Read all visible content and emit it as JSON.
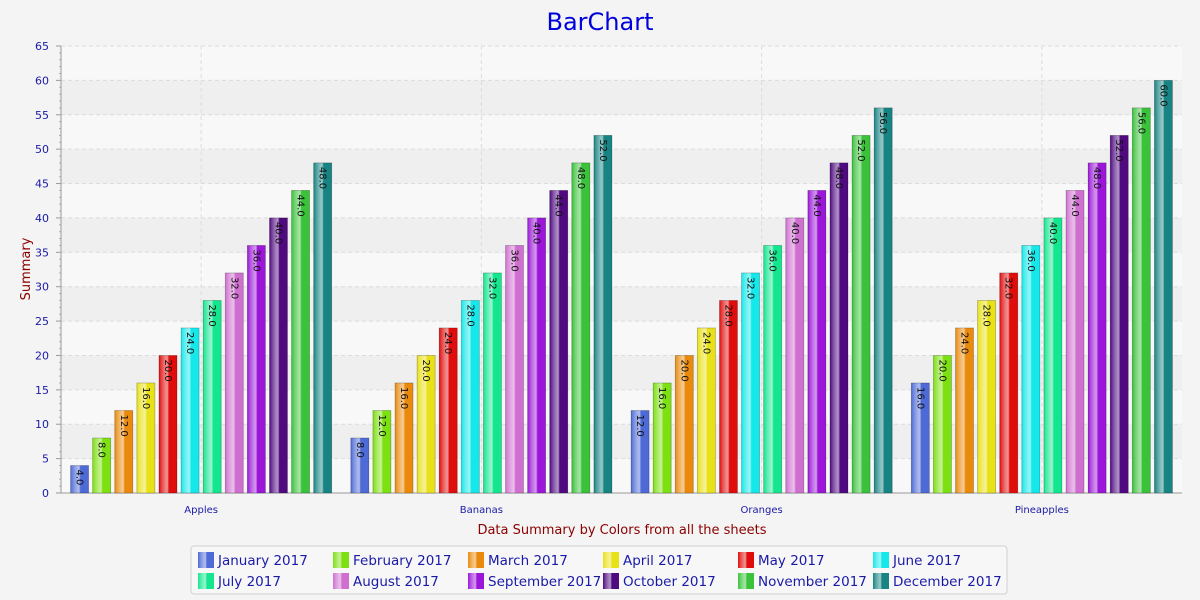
{
  "colors": {
    "title": "#0000dd",
    "axis_label": "#8b0000",
    "tick": "#1a1aa8",
    "legend_text": "#1a1aa8",
    "background": "#f4f4f4",
    "plot_band_light": "#f8f8f8",
    "plot_band_dark": "#efefef",
    "grid": "#dcdcdc"
  },
  "chart_data": {
    "type": "bar",
    "title": "BarChart",
    "xlabel": "Data Summary by Colors from all the sheets",
    "ylabel": "Summary",
    "ylim": [
      0,
      65
    ],
    "ytick_step": 5,
    "grid": true,
    "legend_position": "bottom",
    "categories": [
      "Apples",
      "Bananas",
      "Oranges",
      "Pineapples"
    ],
    "series": [
      {
        "name": "January 2017",
        "color": "#4d6ad6",
        "values": [
          4,
          8,
          12,
          16
        ]
      },
      {
        "name": "February 2017",
        "color": "#7de010",
        "values": [
          8,
          12,
          16,
          20
        ]
      },
      {
        "name": "March 2017",
        "color": "#ea8a0c",
        "values": [
          12,
          16,
          20,
          24
        ]
      },
      {
        "name": "April 2017",
        "color": "#e9e117",
        "values": [
          16,
          20,
          24,
          28
        ]
      },
      {
        "name": "May 2017",
        "color": "#e00d0d",
        "values": [
          20,
          24,
          28,
          32
        ]
      },
      {
        "name": "June 2017",
        "color": "#14e8ea",
        "values": [
          24,
          28,
          32,
          36
        ]
      },
      {
        "name": "July 2017",
        "color": "#13e68f",
        "values": [
          28,
          32,
          36,
          40
        ]
      },
      {
        "name": "August 2017",
        "color": "#cf6fd0",
        "values": [
          32,
          36,
          40,
          44
        ]
      },
      {
        "name": "September 2017",
        "color": "#9b16d8",
        "values": [
          36,
          40,
          44,
          48
        ]
      },
      {
        "name": "October 2017",
        "color": "#4f0a80",
        "values": [
          40,
          44,
          48,
          52
        ]
      },
      {
        "name": "November 2017",
        "color": "#3ac23a",
        "values": [
          44,
          48,
          52,
          56
        ]
      },
      {
        "name": "December 2017",
        "color": "#178483",
        "values": [
          48,
          52,
          56,
          60
        ]
      }
    ]
  }
}
